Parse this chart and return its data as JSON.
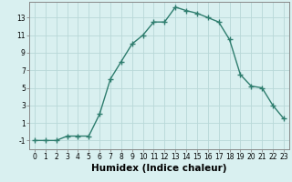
{
  "x": [
    0,
    1,
    2,
    3,
    4,
    5,
    6,
    7,
    8,
    9,
    10,
    11,
    12,
    13,
    14,
    15,
    16,
    17,
    18,
    19,
    20,
    21,
    22,
    23
  ],
  "y": [
    -1,
    -1,
    -1,
    -0.5,
    -0.5,
    -0.5,
    2,
    6,
    8,
    10,
    11,
    12.5,
    12.5,
    14.2,
    13.8,
    13.5,
    13.0,
    12.5,
    10.5,
    6.5,
    5.2,
    5.0,
    3.0,
    1.5
  ],
  "line_color": "#2e7d6e",
  "marker": "+",
  "bg_color": "#d9f0f0",
  "grid_color": "#b8d8d8",
  "xlabel": "Humidex (Indice chaleur)",
  "xlim": [
    -0.5,
    23.5
  ],
  "ylim": [
    -2.0,
    14.8
  ],
  "yticks": [
    -1,
    1,
    3,
    5,
    7,
    9,
    11,
    13
  ],
  "xticks": [
    0,
    1,
    2,
    3,
    4,
    5,
    6,
    7,
    8,
    9,
    10,
    11,
    12,
    13,
    14,
    15,
    16,
    17,
    18,
    19,
    20,
    21,
    22,
    23
  ],
  "tick_fontsize": 5.5,
  "label_fontsize": 7.5,
  "linewidth": 1.0,
  "markersize": 4,
  "markeredgewidth": 1.0
}
